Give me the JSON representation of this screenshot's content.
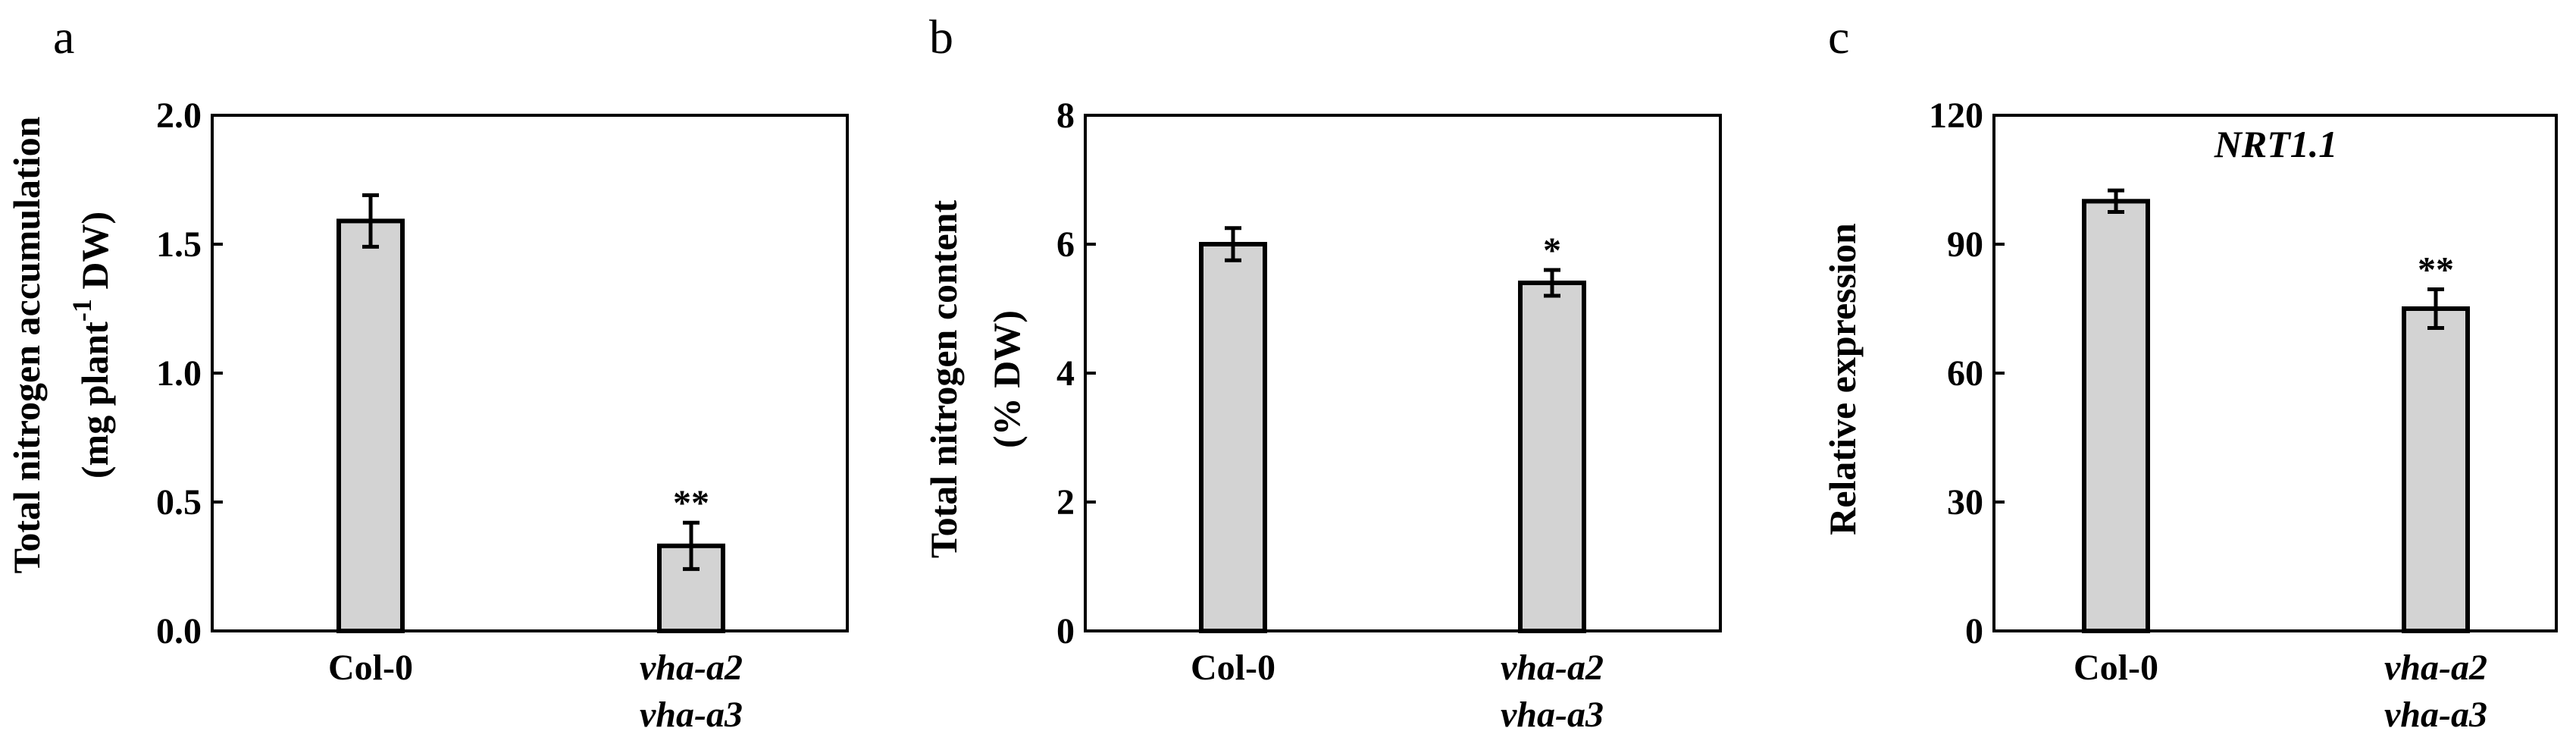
{
  "chart_data": [
    {
      "type": "bar",
      "panel_label": "a",
      "title": "",
      "ylabel_lines": [
        "Total nitrogen accumulation",
        "(mg plant",
        "-1",
        " DW)"
      ],
      "categories": [
        [
          "Col-0"
        ],
        [
          "vha-a2",
          "vha-a3"
        ]
      ],
      "category_italic": [
        false,
        true
      ],
      "values": [
        1.59,
        0.33
      ],
      "errors": [
        0.1,
        0.09
      ],
      "significance": [
        "",
        "**"
      ],
      "ylim": [
        0,
        2.0
      ],
      "yticks": [
        "0.0",
        "0.5",
        "1.0",
        "1.5",
        "2.0"
      ],
      "ytick_values": [
        0,
        0.5,
        1.0,
        1.5,
        2.0
      ],
      "bar_color": "#d3d3d3"
    },
    {
      "type": "bar",
      "panel_label": "b",
      "title": "",
      "ylabel_lines": [
        "Total nitrogen content",
        "(% DW)"
      ],
      "categories": [
        [
          "Col-0"
        ],
        [
          "vha-a2",
          "vha-a3"
        ]
      ],
      "category_italic": [
        false,
        true
      ],
      "values": [
        6.0,
        5.4
      ],
      "errors": [
        0.25,
        0.2
      ],
      "significance": [
        "",
        "*"
      ],
      "ylim": [
        0,
        8
      ],
      "yticks": [
        "0",
        "2",
        "4",
        "6",
        "8"
      ],
      "ytick_values": [
        0,
        2,
        4,
        6,
        8
      ],
      "bar_color": "#d3d3d3"
    },
    {
      "type": "bar",
      "panel_label": "c",
      "title": "NRT1.1",
      "ylabel_lines": [
        "Relative expression"
      ],
      "categories": [
        [
          "Col-0"
        ],
        [
          "vha-a2",
          "vha-a3"
        ]
      ],
      "category_italic": [
        false,
        true
      ],
      "values": [
        100,
        75
      ],
      "errors": [
        2.5,
        4.5
      ],
      "significance": [
        "",
        "**"
      ],
      "ylim": [
        0,
        120
      ],
      "yticks": [
        "0",
        "30",
        "60",
        "90",
        "120"
      ],
      "ytick_values": [
        0,
        30,
        60,
        90,
        120
      ],
      "bar_color": "#d3d3d3"
    }
  ]
}
